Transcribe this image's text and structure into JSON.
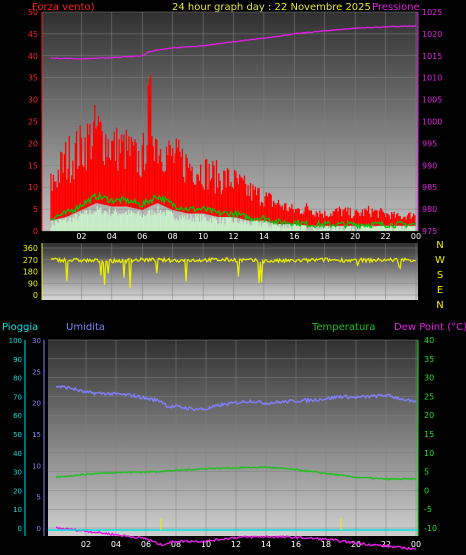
{
  "header": {
    "wind_label": "Forza vento)",
    "title": "24 hour graph day : 22 Novembre 2025",
    "pressure_label": "Pressione"
  },
  "legend_bottom": {
    "rain": "Pioggia",
    "humidity": "Umidita",
    "temperature": "Temperatura",
    "dew_point": "Dew Point (°C)"
  },
  "compass": [
    "N",
    "W",
    "S",
    "E",
    "N"
  ],
  "colors": {
    "wind_gust": "#ff0000",
    "wind_avg": "#00c800",
    "wind_white": "#c8f0c8",
    "pressure": "#e020e0",
    "direction": "#f0f000",
    "humidity": "#8080ff",
    "temperature": "#20c020",
    "dew_point": "#e020e0",
    "rain": "#00e0e0",
    "left_axis": "#ff2020",
    "hum_axis": "#8080ff",
    "temp_axis": "#20e020"
  },
  "chart_data": [
    {
      "type": "line",
      "title": "24 hour graph day : 22 Novembre 2025",
      "x_ticks": [
        "02",
        "04",
        "06",
        "08",
        "10",
        "12",
        "14",
        "16",
        "18",
        "20",
        "22",
        "00"
      ],
      "y_left_label": "Forza vento)",
      "y_left_ticks": [
        0,
        5,
        10,
        15,
        20,
        25,
        30,
        35,
        40,
        45,
        50
      ],
      "y_left_range": [
        0,
        50
      ],
      "y_right_label": "Pressione",
      "y_right_ticks": [
        975,
        980,
        985,
        990,
        995,
        1000,
        1005,
        1010,
        1015,
        1020,
        1025
      ],
      "y_right_range": [
        975,
        1025
      ],
      "series": [
        {
          "name": "Pressione",
          "x": [
            0,
            2,
            4,
            6,
            6.5,
            8,
            10,
            12,
            14,
            16,
            18,
            20,
            22,
            24
          ],
          "values": [
            1014.5,
            1014.3,
            1014.6,
            1015.0,
            1016.0,
            1016.8,
            1017.3,
            1018.2,
            1019.0,
            1020.0,
            1020.7,
            1021.3,
            1021.6,
            1021.8
          ]
        },
        {
          "name": "Gust",
          "x": [
            0,
            1,
            2,
            3,
            4,
            5,
            6,
            6.5,
            7,
            8,
            9,
            10,
            11,
            12,
            13,
            14,
            15,
            16,
            17,
            18,
            19,
            20,
            21,
            22,
            23,
            24
          ],
          "values": [
            14,
            22,
            25,
            30,
            25,
            24,
            20,
            38,
            25,
            22,
            20,
            18,
            16,
            15,
            12,
            10,
            8,
            6,
            7,
            5,
            6,
            5,
            6,
            5,
            4,
            5
          ]
        },
        {
          "name": "Average",
          "x": [
            0,
            1,
            2,
            3,
            4,
            5,
            6,
            7,
            8,
            9,
            10,
            11,
            12,
            13,
            14,
            15,
            16,
            17,
            18,
            19,
            20,
            21,
            22,
            23,
            24
          ],
          "values": [
            3,
            4,
            6,
            8,
            7,
            7,
            6,
            8,
            6,
            5,
            5,
            4,
            4,
            3,
            3,
            2,
            2,
            1.5,
            1.5,
            1.5,
            1.5,
            1.5,
            1.5,
            1.5,
            1.5
          ]
        }
      ]
    },
    {
      "type": "line",
      "x_ticks": [
        "02",
        "04",
        "06",
        "08",
        "10",
        "12",
        "14",
        "16",
        "18",
        "20",
        "22",
        "00"
      ],
      "y_ticks": [
        0,
        90,
        180,
        270,
        360
      ],
      "y_range": [
        0,
        360
      ],
      "series": [
        {
          "name": "Direction",
          "x": [
            0,
            2,
            4,
            6,
            8,
            10,
            12,
            14,
            16,
            18,
            20,
            22,
            24
          ],
          "values": [
            270,
            265,
            260,
            270,
            265,
            268,
            270,
            260,
            262,
            270,
            265,
            268,
            270
          ]
        }
      ]
    },
    {
      "type": "line",
      "legend": [
        "Pioggia",
        "Umidita",
        "Temperatura",
        "Dew Point (°C)"
      ],
      "x_ticks": [
        "02",
        "04",
        "06",
        "08",
        "10",
        "12",
        "14",
        "16",
        "18",
        "20",
        "22",
        "00"
      ],
      "y_pioggia_ticks": [
        0,
        10,
        20,
        30,
        40,
        50,
        60,
        70,
        80,
        90,
        100
      ],
      "y_umidita_ticks": [
        0,
        5,
        10,
        15,
        20,
        25,
        30
      ],
      "y_temp_ticks": [
        -10,
        -5,
        0,
        5,
        10,
        15,
        20,
        25,
        30,
        35,
        40
      ],
      "y_temp_range": [
        -10,
        40
      ],
      "series": [
        {
          "name": "Umidita",
          "x": [
            0,
            1,
            2,
            3,
            4,
            5,
            6,
            7,
            7.5,
            8,
            9,
            10,
            11,
            12,
            13,
            14,
            15,
            16,
            17,
            18,
            19,
            20,
            21,
            22,
            23,
            24
          ],
          "values": [
            27.7,
            27.2,
            26.0,
            25.8,
            25.6,
            25.3,
            24.5,
            23.8,
            22.2,
            22.3,
            21.7,
            21.6,
            22.7,
            23.3,
            23.8,
            23.2,
            23.5,
            23.8,
            24.0,
            24.4,
            25.0,
            24.7,
            25.0,
            25.3,
            24.4,
            23.3
          ]
        },
        {
          "name": "Temperatura",
          "x": [
            0,
            2,
            4,
            6,
            8,
            10,
            12,
            14,
            16,
            18,
            20,
            22,
            24
          ],
          "values": [
            3.5,
            4.3,
            4.8,
            4.9,
            5.3,
            5.8,
            6.0,
            6.2,
            5.5,
            4.5,
            3.5,
            3.0,
            3.0
          ]
        },
        {
          "name": "Dew Point (°C)",
          "x": [
            0,
            2,
            4,
            6,
            7,
            8,
            10,
            12,
            14,
            16,
            18,
            20,
            22,
            24
          ],
          "values": [
            -10.0,
            -10.8,
            -11.8,
            -12.8,
            -14.5,
            -13.5,
            -13.5,
            -12.5,
            -12.3,
            -12.5,
            -13.0,
            -14.0,
            -14.8,
            -15.6
          ]
        },
        {
          "name": "Pioggia",
          "x": [
            0,
            24
          ],
          "values": [
            0,
            0
          ]
        }
      ]
    }
  ]
}
